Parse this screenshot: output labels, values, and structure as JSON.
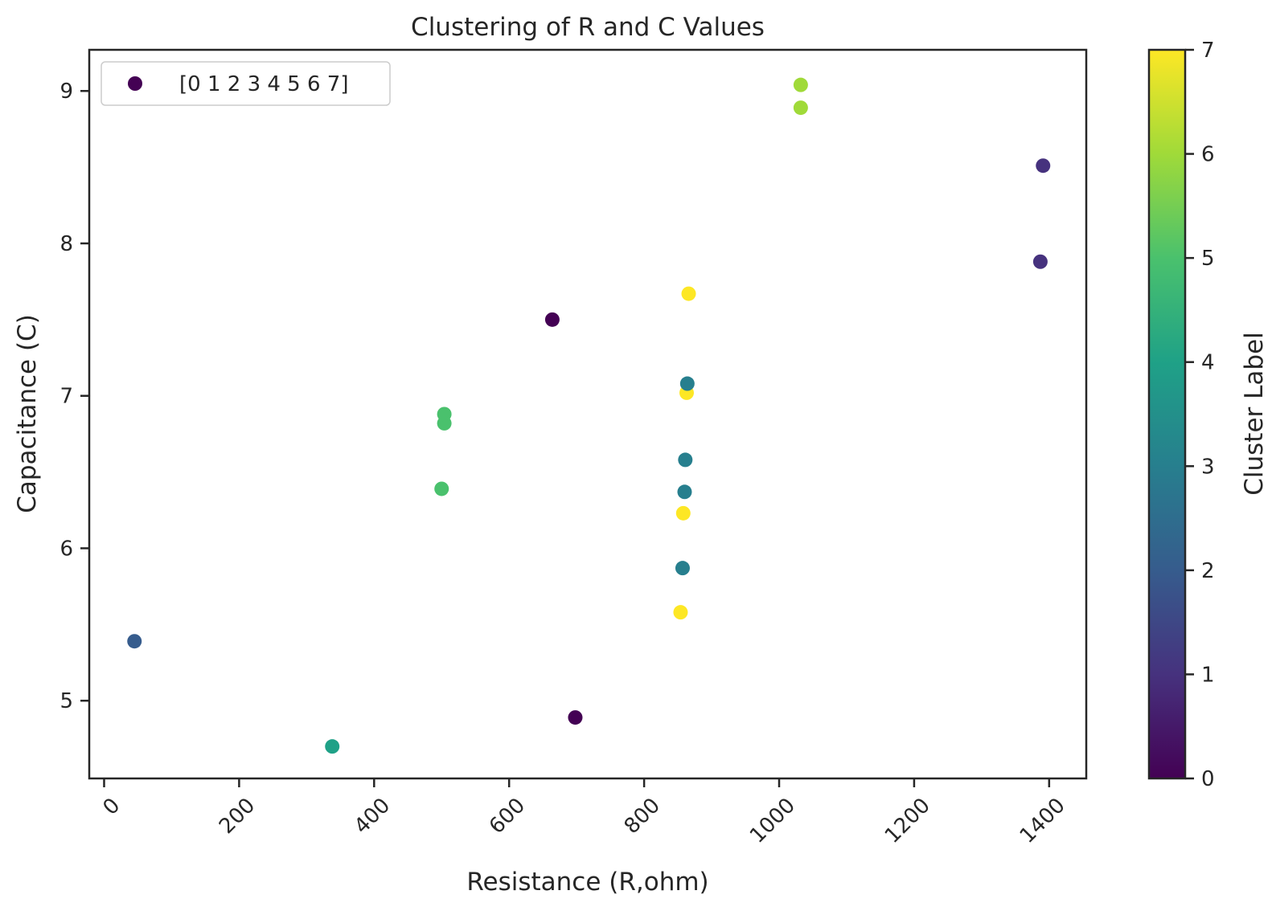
{
  "chart_data": {
    "type": "scatter",
    "title": "Clustering of R and C Values",
    "xlabel": "Resistance (R,ohm)",
    "ylabel": "Capacitance (C)",
    "xlim": [
      -22,
      1455
    ],
    "ylim": [
      4.49,
      9.27
    ],
    "xticks": [
      0,
      200,
      400,
      600,
      800,
      1000,
      1200,
      1400
    ],
    "yticks": [
      5,
      6,
      7,
      8,
      9
    ],
    "grid": false,
    "legend": {
      "position": "top-left",
      "label": "[0 1 2 3 4 5 6 7]",
      "color": "#440154"
    },
    "colorbar": {
      "label": "Cluster Label",
      "min": 0,
      "max": 7,
      "ticks": [
        0,
        1,
        2,
        3,
        4,
        5,
        6,
        7
      ],
      "colormap": "viridis"
    },
    "cluster_colors": {
      "0": "#440154",
      "1": "#46327e",
      "2": "#365c8d",
      "3": "#277f8e",
      "4": "#1fa187",
      "5": "#4ac16d",
      "6": "#a0da39",
      "7": "#fde725"
    },
    "points": [
      {
        "x": 45,
        "y": 5.39,
        "cluster": 2
      },
      {
        "x": 338,
        "y": 4.7,
        "cluster": 4
      },
      {
        "x": 500,
        "y": 6.39,
        "cluster": 5
      },
      {
        "x": 504,
        "y": 6.82,
        "cluster": 5
      },
      {
        "x": 504,
        "y": 6.88,
        "cluster": 5
      },
      {
        "x": 664,
        "y": 7.5,
        "cluster": 0
      },
      {
        "x": 698,
        "y": 4.89,
        "cluster": 0
      },
      {
        "x": 854,
        "y": 5.58,
        "cluster": 7
      },
      {
        "x": 857,
        "y": 5.87,
        "cluster": 3
      },
      {
        "x": 858,
        "y": 6.23,
        "cluster": 7
      },
      {
        "x": 860,
        "y": 6.37,
        "cluster": 3
      },
      {
        "x": 861,
        "y": 6.58,
        "cluster": 3
      },
      {
        "x": 863,
        "y": 7.02,
        "cluster": 7
      },
      {
        "x": 864,
        "y": 7.08,
        "cluster": 3
      },
      {
        "x": 866,
        "y": 7.67,
        "cluster": 7
      },
      {
        "x": 1032,
        "y": 8.89,
        "cluster": 6
      },
      {
        "x": 1032,
        "y": 9.04,
        "cluster": 6
      },
      {
        "x": 1387,
        "y": 7.88,
        "cluster": 1
      },
      {
        "x": 1391,
        "y": 8.51,
        "cluster": 1
      }
    ]
  }
}
